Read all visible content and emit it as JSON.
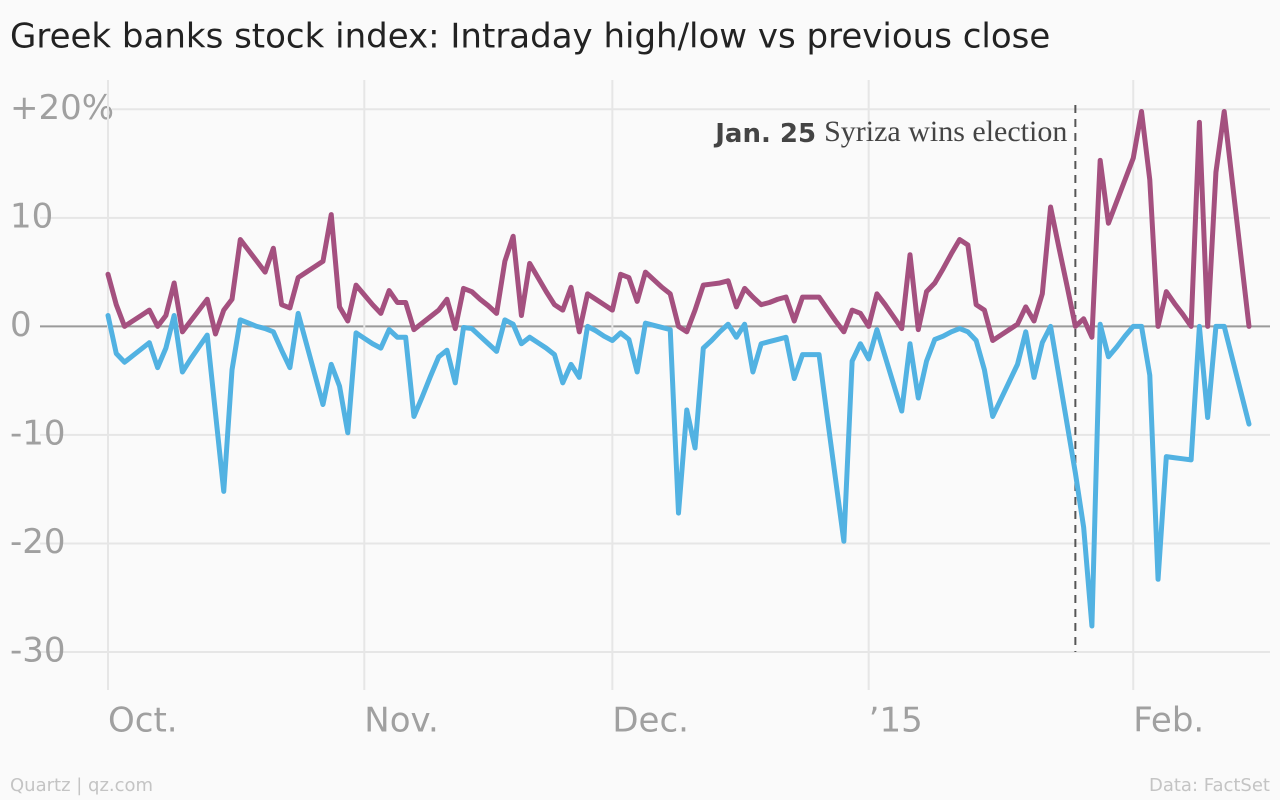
{
  "chart_data": {
    "type": "line",
    "title": "Greek banks stock index: Intraday high/low vs previous close",
    "source_left": "Quartz | qz.com",
    "source_right": "Data: FactSet",
    "categories": [
      "Oct.",
      null,
      null,
      null,
      null,
      null,
      null,
      null,
      null,
      null,
      null,
      null,
      null,
      null,
      null,
      null,
      null,
      null,
      null,
      null,
      null,
      null,
      null,
      null,
      null,
      null,
      null,
      null,
      null,
      null,
      null,
      "Nov.",
      null,
      null,
      null,
      null,
      null,
      null,
      null,
      null,
      null,
      null,
      null,
      null,
      null,
      null,
      null,
      null,
      null,
      null,
      null,
      null,
      null,
      null,
      null,
      null,
      null,
      null,
      null,
      null,
      null,
      "Dec.",
      null,
      null,
      null,
      null,
      null,
      null,
      null,
      null,
      null,
      null,
      null,
      null,
      null,
      null,
      null,
      null,
      null,
      null,
      null,
      null,
      null,
      null,
      null,
      null,
      null,
      null,
      null,
      null,
      null,
      null,
      "’15",
      null,
      null,
      null,
      null,
      null,
      null,
      null,
      null,
      null,
      null,
      null,
      null,
      null,
      null,
      null,
      null,
      null,
      null,
      null,
      null,
      null,
      null,
      null,
      null,
      null,
      null,
      null,
      null,
      null,
      null,
      null,
      "Feb.",
      null,
      null,
      null,
      null,
      null,
      null,
      null,
      null,
      null,
      null,
      null,
      null,
      null,
      null
    ],
    "series": [
      {
        "color": "#52b2e2",
        "values": [
          1,
          -2.5,
          -3.3,
          -2.7,
          -2.1,
          -1.5,
          -3.8,
          -2,
          1,
          -4.2,
          -3,
          -1.9,
          -0.8,
          -8,
          -15.2,
          -4,
          0.6,
          0.3,
          0,
          -0.2,
          -0.5,
          -2.2,
          -3.8,
          1.2,
          -1.6,
          -4.4,
          -7.2,
          -3.5,
          -5.5,
          -9.8,
          -0.6,
          -1.1,
          -1.6,
          -2,
          -0.3,
          -1,
          -1,
          -8.3,
          -6.5,
          -4.6,
          -2.8,
          -2.2,
          -5.2,
          -0.1,
          -0.2,
          -0.9,
          -1.6,
          -2.3,
          0.6,
          0.2,
          -1.6,
          -1,
          -1.5,
          -2,
          -2.6,
          -5.2,
          -3.5,
          -4.7,
          0,
          -0.4,
          -0.9,
          -1.3,
          -0.6,
          -1.2,
          -4.2,
          0.3,
          0.1,
          -0.1,
          -0.3,
          -17.2,
          -7.7,
          -11.2,
          -2,
          -1.3,
          -0.5,
          0.2,
          -1,
          0.2,
          -4.2,
          -1.6,
          -1.4,
          -1.2,
          -1,
          -4.8,
          -2.6,
          -2.6,
          -2.6,
          -8.4,
          -14.1,
          -19.8,
          -3.2,
          -1.6,
          -3,
          -0.3,
          -2.8,
          -5.3,
          -7.8,
          -1.6,
          -6.6,
          -3.2,
          -1.2,
          -0.9,
          -0.5,
          -0.2,
          -0.5,
          -1.3,
          -4,
          -8.3,
          -6.7,
          -5.1,
          -3.5,
          -0.5,
          -4.7,
          -1.5,
          0,
          -4.5,
          -9,
          -13.5,
          -18.5,
          -27.6,
          0.2,
          -2.8,
          -1.9,
          -0.9,
          0,
          0,
          -4.5,
          -23.3,
          -12,
          -12.1,
          -12.2,
          -12.3,
          0,
          -8.4,
          0,
          0,
          -3,
          -6,
          -9
        ]
      },
      {
        "color": "#a4507f",
        "values": [
          4.8,
          2,
          0,
          0.5,
          1,
          1.5,
          0,
          1,
          4,
          -0.5,
          0.5,
          1.5,
          2.5,
          -0.7,
          1.5,
          2.5,
          8,
          7,
          6,
          5,
          7.2,
          2,
          1.7,
          4.5,
          5,
          5.5,
          6,
          10.3,
          1.8,
          0.5,
          3.8,
          2.9,
          2,
          1.2,
          3.3,
          2.2,
          2.2,
          -0.3,
          0.3,
          0.9,
          1.5,
          2.5,
          -0.2,
          3.5,
          3.2,
          2.5,
          1.9,
          1.2,
          6,
          8.3,
          1,
          5.8,
          4.5,
          3.2,
          2,
          1.5,
          3.6,
          -0.5,
          3,
          2.5,
          2,
          1.5,
          4.8,
          4.5,
          2.3,
          5,
          4.3,
          3.6,
          3,
          0,
          -0.5,
          1.5,
          3.8,
          3.9,
          4,
          4.2,
          1.8,
          3.5,
          2.7,
          2,
          2.2,
          2.5,
          2.7,
          0.5,
          2.7,
          2.7,
          2.7,
          1.6,
          0.5,
          -0.5,
          1.5,
          1.2,
          0,
          3,
          2,
          0.9,
          -0.2,
          6.6,
          -0.3,
          3.2,
          4,
          5.3,
          6.7,
          8,
          7.5,
          2,
          1.5,
          -1.3,
          -0.8,
          -0.3,
          0.2,
          1.8,
          0.5,
          3,
          11,
          7.3,
          3.7,
          0,
          0.7,
          -1,
          15.3,
          9.5,
          11.5,
          13.5,
          15.5,
          19.8,
          13.5,
          0,
          3.2,
          2.1,
          1.1,
          0,
          18.8,
          0,
          14.2,
          19.8,
          13.2,
          6.6,
          0
        ]
      }
    ],
    "ylim": [
      -33.5,
      22.7
    ],
    "yticks": [
      {
        "value": 20,
        "label": "+20%"
      },
      10,
      0,
      -10,
      -20,
      -30
    ],
    "grid": true,
    "annotations": [
      {
        "at": 117,
        "label": "Jan. 25",
        "text": "Syriza wins election"
      }
    ]
  }
}
